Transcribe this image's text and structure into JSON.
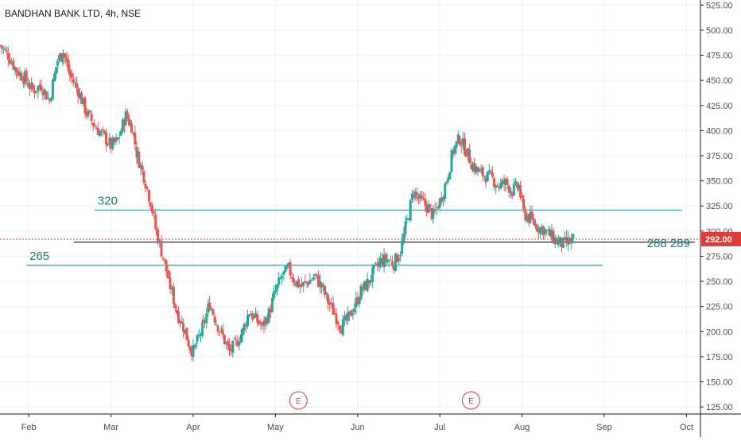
{
  "chart_data": {
    "type": "candlestick",
    "title": "BANDHAN BANK LTD, 4h, NSE",
    "y_ticks": [
      125,
      150,
      175,
      200,
      225,
      250,
      275,
      300,
      325,
      350,
      375,
      400,
      425,
      450,
      475,
      500,
      525
    ],
    "y_tick_labels": [
      "125.00",
      "150.00",
      "175.00",
      "200.00",
      "225.00",
      "250.00",
      "275.00",
      "300.00",
      "325.00",
      "350.00",
      "375.00",
      "400.00",
      "425.00",
      "450.00",
      "475.00",
      "500.00",
      "525.00"
    ],
    "ylim": [
      118,
      530
    ],
    "x_labels": [
      "Feb",
      "Mar",
      "Apr",
      "May",
      "Jun",
      "Jul",
      "Aug",
      "Sep",
      "Oct"
    ],
    "x_label_positions": [
      1.0,
      2.0,
      3.0,
      4.0,
      5.0,
      6.0,
      7.0,
      8.0,
      9.0
    ],
    "xlim": [
      0.65,
      9.0
    ],
    "grid": true,
    "current_price": 292.0,
    "current_price_label": "292.00",
    "colors": {
      "up": "#26a69a",
      "down": "#ef5350",
      "level_line": "#26a69a",
      "price_line": "#e03b3b",
      "grid": "#edf0f3"
    },
    "levels": [
      {
        "label": "320",
        "value": 321,
        "x_start": 1.8,
        "x_end": 8.95
      },
      {
        "label": "288  289",
        "value": 289,
        "x_start": 1.55,
        "x_end": 9.1
      },
      {
        "label": "265",
        "value": 266,
        "x_start": 0.97,
        "x_end": 7.98
      }
    ],
    "events": [
      {
        "label": "E",
        "x": 4.28
      },
      {
        "label": "E",
        "x": 6.38
      }
    ],
    "price_path": [
      [
        0.65,
        485
      ],
      [
        0.75,
        475
      ],
      [
        0.85,
        460
      ],
      [
        0.95,
        452
      ],
      [
        1.05,
        440
      ],
      [
        1.15,
        445
      ],
      [
        1.25,
        430
      ],
      [
        1.35,
        470
      ],
      [
        1.42,
        478
      ],
      [
        1.5,
        455
      ],
      [
        1.6,
        440
      ],
      [
        1.7,
        418
      ],
      [
        1.8,
        405
      ],
      [
        1.9,
        395
      ],
      [
        2.0,
        385
      ],
      [
        2.08,
        390
      ],
      [
        2.18,
        415
      ],
      [
        2.25,
        405
      ],
      [
        2.32,
        375
      ],
      [
        2.4,
        355
      ],
      [
        2.48,
        330
      ],
      [
        2.55,
        300
      ],
      [
        2.63,
        275
      ],
      [
        2.72,
        245
      ],
      [
        2.8,
        220
      ],
      [
        2.88,
        205
      ],
      [
        2.96,
        185
      ],
      [
        3.0,
        180
      ],
      [
        3.05,
        190
      ],
      [
        3.12,
        205
      ],
      [
        3.2,
        228
      ],
      [
        3.28,
        210
      ],
      [
        3.36,
        195
      ],
      [
        3.44,
        180
      ],
      [
        3.52,
        188
      ],
      [
        3.6,
        200
      ],
      [
        3.68,
        220
      ],
      [
        3.76,
        212
      ],
      [
        3.84,
        205
      ],
      [
        3.92,
        218
      ],
      [
        4.0,
        240
      ],
      [
        4.08,
        255
      ],
      [
        4.16,
        262
      ],
      [
        4.24,
        250
      ],
      [
        4.32,
        245
      ],
      [
        4.4,
        250
      ],
      [
        4.48,
        255
      ],
      [
        4.56,
        245
      ],
      [
        4.64,
        230
      ],
      [
        4.72,
        218
      ],
      [
        4.8,
        205
      ],
      [
        4.88,
        212
      ],
      [
        4.96,
        225
      ],
      [
        5.04,
        240
      ],
      [
        5.12,
        248
      ],
      [
        5.2,
        260
      ],
      [
        5.28,
        270
      ],
      [
        5.36,
        272
      ],
      [
        5.44,
        268
      ],
      [
        5.52,
        280
      ],
      [
        5.6,
        310
      ],
      [
        5.68,
        340
      ],
      [
        5.76,
        330
      ],
      [
        5.84,
        325
      ],
      [
        5.92,
        315
      ],
      [
        6.0,
        330
      ],
      [
        6.08,
        350
      ],
      [
        6.16,
        380
      ],
      [
        6.24,
        392
      ],
      [
        6.32,
        380
      ],
      [
        6.4,
        365
      ],
      [
        6.48,
        358
      ],
      [
        6.56,
        355
      ],
      [
        6.64,
        352
      ],
      [
        6.72,
        345
      ],
      [
        6.8,
        348
      ],
      [
        6.88,
        340
      ],
      [
        6.96,
        345
      ],
      [
        7.02,
        318
      ],
      [
        7.1,
        312
      ],
      [
        7.18,
        305
      ],
      [
        7.26,
        302
      ],
      [
        7.34,
        296
      ],
      [
        7.42,
        290
      ],
      [
        7.5,
        287
      ],
      [
        7.58,
        289
      ],
      [
        7.64,
        293
      ]
    ]
  }
}
